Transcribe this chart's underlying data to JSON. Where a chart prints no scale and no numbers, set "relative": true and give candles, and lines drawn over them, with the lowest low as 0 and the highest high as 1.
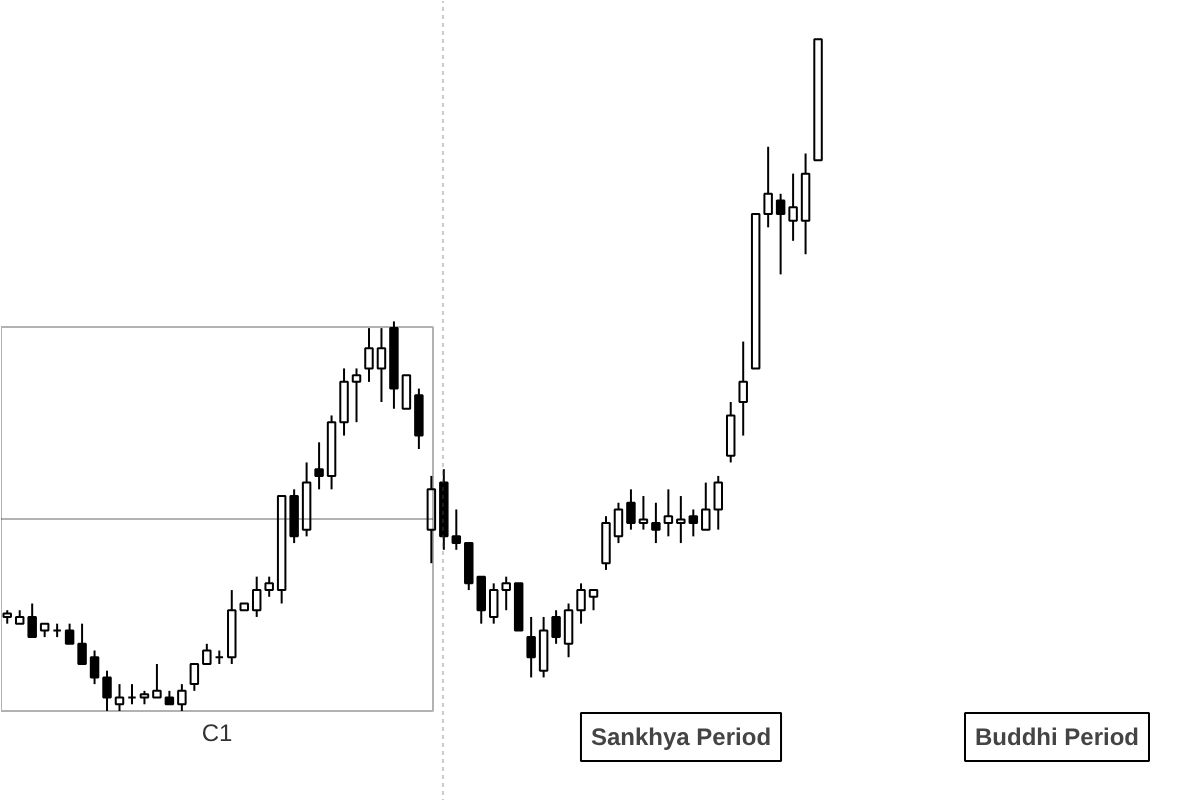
{
  "chart_data": {
    "type": "candlestick",
    "relative": true,
    "grid": false,
    "categories": [
      null,
      null,
      null,
      null,
      null,
      null,
      null,
      null,
      null,
      null,
      null,
      null,
      null,
      null,
      null,
      null,
      null,
      null,
      null,
      null,
      null,
      null,
      null,
      null,
      null,
      null,
      null,
      null,
      null,
      null,
      null,
      null,
      null,
      null,
      null,
      null,
      null,
      null,
      null,
      null,
      null,
      null,
      null,
      null,
      null,
      null,
      null,
      null,
      null,
      null,
      null,
      null,
      null,
      null,
      null,
      null,
      null,
      null,
      null,
      null,
      null,
      null,
      null,
      null,
      null,
      null
    ],
    "ohlc": [
      [
        0.14,
        0.15,
        0.13,
        0.145
      ],
      [
        0.13,
        0.15,
        0.13,
        0.14
      ],
      [
        0.14,
        0.16,
        0.11,
        0.11
      ],
      [
        0.12,
        0.13,
        0.11,
        0.13
      ],
      [
        0.12,
        0.13,
        0.11,
        0.12
      ],
      [
        0.12,
        0.13,
        0.1,
        0.1
      ],
      [
        0.1,
        0.13,
        0.07,
        0.07
      ],
      [
        0.08,
        0.09,
        0.04,
        0.05
      ],
      [
        0.05,
        0.06,
        0.0,
        0.02
      ],
      [
        0.01,
        0.04,
        0.0,
        0.02
      ],
      [
        0.02,
        0.04,
        0.01,
        0.02
      ],
      [
        0.02,
        0.03,
        0.01,
        0.025
      ],
      [
        0.02,
        0.07,
        0.02,
        0.03
      ],
      [
        0.02,
        0.03,
        0.01,
        0.01
      ],
      [
        0.01,
        0.04,
        0.0,
        0.03
      ],
      [
        0.04,
        0.07,
        0.03,
        0.07
      ],
      [
        0.07,
        0.1,
        0.07,
        0.09
      ],
      [
        0.08,
        0.09,
        0.07,
        0.08
      ],
      [
        0.08,
        0.18,
        0.07,
        0.15
      ],
      [
        0.15,
        0.16,
        0.15,
        0.16
      ],
      [
        0.15,
        0.2,
        0.14,
        0.18
      ],
      [
        0.18,
        0.2,
        0.17,
        0.19
      ],
      [
        0.18,
        0.32,
        0.16,
        0.32
      ],
      [
        0.32,
        0.33,
        0.25,
        0.26
      ],
      [
        0.27,
        0.37,
        0.26,
        0.34
      ],
      [
        0.36,
        0.4,
        0.33,
        0.35
      ],
      [
        0.35,
        0.44,
        0.33,
        0.43
      ],
      [
        0.43,
        0.51,
        0.41,
        0.49
      ],
      [
        0.49,
        0.51,
        0.43,
        0.5
      ],
      [
        0.51,
        0.57,
        0.49,
        0.54
      ],
      [
        0.51,
        0.57,
        0.46,
        0.54
      ],
      [
        0.57,
        0.58,
        0.45,
        0.48
      ],
      [
        0.45,
        0.5,
        0.45,
        0.5
      ],
      [
        0.47,
        0.48,
        0.39,
        0.41
      ],
      [
        0.27,
        0.35,
        0.22,
        0.33
      ],
      [
        0.34,
        0.36,
        0.24,
        0.26
      ],
      [
        0.26,
        0.3,
        0.24,
        0.25
      ],
      [
        0.25,
        0.25,
        0.18,
        0.19
      ],
      [
        0.2,
        0.2,
        0.13,
        0.15
      ],
      [
        0.14,
        0.19,
        0.13,
        0.18
      ],
      [
        0.18,
        0.2,
        0.15,
        0.19
      ],
      [
        0.19,
        0.19,
        0.12,
        0.12
      ],
      [
        0.11,
        0.14,
        0.05,
        0.08
      ],
      [
        0.06,
        0.14,
        0.05,
        0.12
      ],
      [
        0.14,
        0.15,
        0.1,
        0.11
      ],
      [
        0.1,
        0.16,
        0.08,
        0.15
      ],
      [
        0.15,
        0.19,
        0.13,
        0.18
      ],
      [
        0.17,
        0.18,
        0.15,
        0.18
      ],
      [
        0.22,
        0.29,
        0.21,
        0.28
      ],
      [
        0.26,
        0.31,
        0.25,
        0.3
      ],
      [
        0.31,
        0.33,
        0.27,
        0.28
      ],
      [
        0.28,
        0.32,
        0.27,
        0.285
      ],
      [
        0.28,
        0.31,
        0.25,
        0.27
      ],
      [
        0.28,
        0.33,
        0.26,
        0.29
      ],
      [
        0.28,
        0.32,
        0.25,
        0.285
      ],
      [
        0.29,
        0.3,
        0.26,
        0.28
      ],
      [
        0.27,
        0.34,
        0.27,
        0.3
      ],
      [
        0.3,
        0.35,
        0.27,
        0.34
      ],
      [
        0.38,
        0.46,
        0.37,
        0.44
      ],
      [
        0.46,
        0.55,
        0.41,
        0.49
      ],
      [
        0.51,
        0.74,
        0.51,
        0.74
      ],
      [
        0.74,
        0.84,
        0.72,
        0.77
      ],
      [
        0.76,
        0.77,
        0.65,
        0.74
      ],
      [
        0.73,
        0.8,
        0.7,
        0.75
      ],
      [
        0.73,
        0.83,
        0.68,
        0.8
      ],
      [
        0.82,
        1.0,
        0.82,
        1.0
      ]
    ],
    "annotations": [
      "C1",
      "Sankhya Period",
      "Buddhi Period"
    ]
  }
}
